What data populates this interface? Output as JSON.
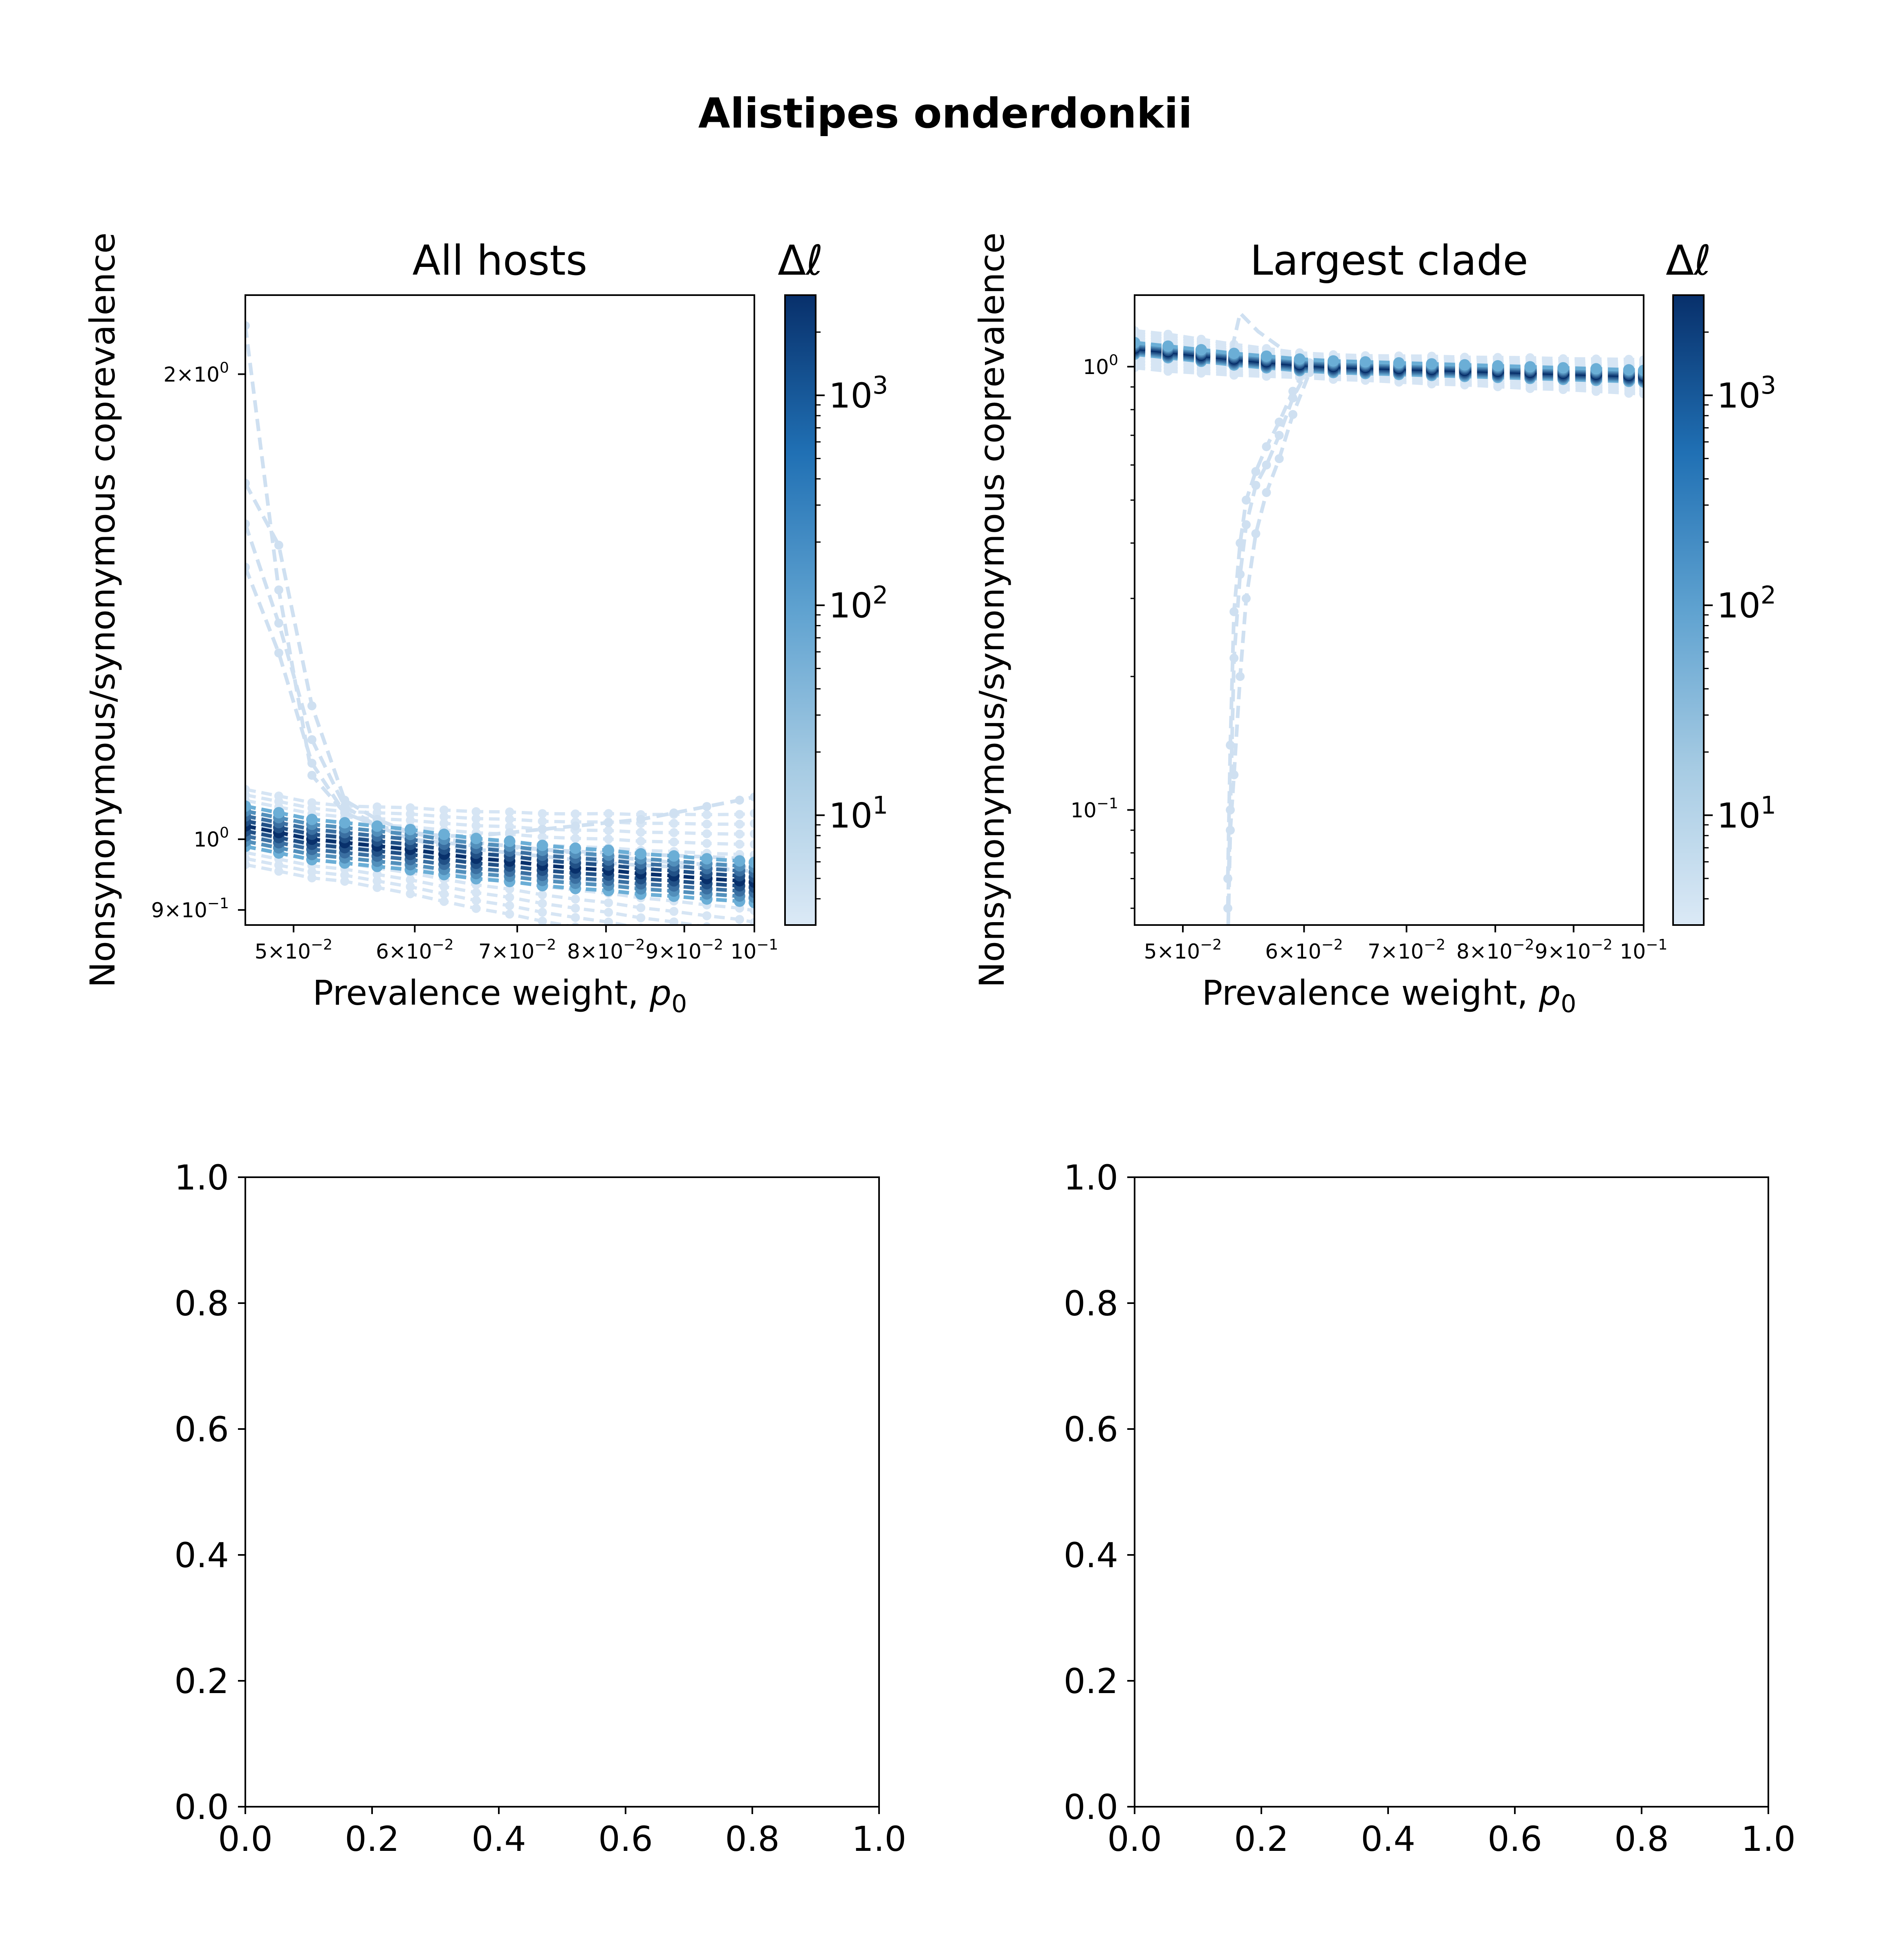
{
  "figure": {
    "suptitle": "Alistipes onderdonkii"
  },
  "chart_data": [
    {
      "panel": "top-left",
      "type": "line",
      "title": "All hosts",
      "xlabel_text": "Prevalence weight, ",
      "xlabel_var": "p",
      "xlabel_sub": "0",
      "ylabel": "Nonsynonymous/synonymous coprevalence",
      "xscale": "log",
      "yscale": "log",
      "xlim": [
        0.0465,
        0.1
      ],
      "ylim": [
        0.88,
        2.25
      ],
      "x_ticks": [
        {
          "value": 0.05,
          "mant": "5",
          "exp": "−2"
        },
        {
          "value": 0.06,
          "mant": "6",
          "exp": "−2"
        },
        {
          "value": 0.07,
          "mant": "7",
          "exp": "−2"
        },
        {
          "value": 0.08,
          "mant": "8",
          "exp": "−2"
        },
        {
          "value": 0.09,
          "mant": "9",
          "exp": "−2"
        },
        {
          "value": 0.1,
          "mant": "",
          "exp": "−1"
        }
      ],
      "y_ticks": [
        {
          "value": 2.0,
          "mant": "2",
          "exp": "0"
        },
        {
          "value": 1.0,
          "mant": "",
          "exp": "0"
        },
        {
          "value": 0.9,
          "mant": "9",
          "exp": "−1"
        }
      ],
      "x": [
        0.0465,
        0.0489,
        0.0514,
        0.054,
        0.0567,
        0.0596,
        0.0627,
        0.0658,
        0.0692,
        0.0727,
        0.0764,
        0.0803,
        0.0843,
        0.0886,
        0.0931,
        0.0978,
        0.1
      ],
      "colorbar": {
        "label": "Δℓ",
        "scale": "log",
        "range": [
          3,
          3000
        ],
        "ticks": [
          10,
          100,
          1000
        ],
        "colormap": "Blues"
      },
      "series_low_likelihood_color": "#d6e5f4",
      "series_high_likelihood_color": "#08306b",
      "bundle_center_dark": [
        1.02,
        1.01,
        1.0,
        0.995,
        0.99,
        0.985,
        0.978,
        0.972,
        0.968,
        0.962,
        0.958,
        0.955,
        0.95,
        0.947,
        0.943,
        0.94,
        0.938
      ],
      "bundle_spread_light": [
        0.07,
        0.07,
        0.07,
        0.07,
        0.075,
        0.08,
        0.085,
        0.09,
        0.095,
        0.1,
        0.105,
        0.11,
        0.115,
        0.12,
        0.125,
        0.13,
        0.135
      ],
      "outlier_series": [
        [
          2.15,
          1.45,
          1.1,
          1.04,
          1.02,
          1.0,
          0.99,
          0.985,
          0.98,
          0.975,
          0.97,
          0.965,
          0.962,
          0.96,
          0.958,
          0.955,
          0.953
        ],
        [
          1.7,
          1.55,
          1.22,
          1.06,
          1.03,
          1.01,
          1.0,
          0.995,
          0.99,
          0.985,
          0.98,
          0.975,
          0.97,
          0.966,
          0.963,
          0.96,
          0.958
        ],
        [
          1.6,
          1.38,
          1.16,
          1.05,
          1.02,
          1.0,
          0.995,
          0.99,
          0.988,
          0.985,
          0.982,
          0.98,
          0.978,
          0.976,
          0.974,
          0.972,
          0.97
        ],
        [
          1.5,
          1.32,
          1.12,
          1.04,
          1.02,
          1.01,
          1.005,
          1.005,
          1.01,
          1.015,
          1.02,
          1.025,
          1.03,
          1.04,
          1.05,
          1.06,
          1.065
        ]
      ]
    },
    {
      "panel": "top-right",
      "type": "line",
      "title": "Largest clade",
      "xlabel_text": "Prevalence weight, ",
      "xlabel_var": "p",
      "xlabel_sub": "0",
      "ylabel": "Nonsynonymous/synonymous coprevalence",
      "xscale": "log",
      "yscale": "log",
      "xlim": [
        0.0465,
        0.1
      ],
      "ylim": [
        0.055,
        1.45
      ],
      "x_ticks": [
        {
          "value": 0.05,
          "mant": "5",
          "exp": "−2"
        },
        {
          "value": 0.06,
          "mant": "6",
          "exp": "−2"
        },
        {
          "value": 0.07,
          "mant": "7",
          "exp": "−2"
        },
        {
          "value": 0.08,
          "mant": "8",
          "exp": "−2"
        },
        {
          "value": 0.09,
          "mant": "9",
          "exp": "−2"
        },
        {
          "value": 0.1,
          "mant": "",
          "exp": "−1"
        }
      ],
      "y_ticks": [
        {
          "value": 1.0,
          "mant": "",
          "exp": "0"
        },
        {
          "value": 0.1,
          "mant": "",
          "exp": "−1"
        }
      ],
      "x": [
        0.0465,
        0.0489,
        0.0514,
        0.054,
        0.0567,
        0.0596,
        0.0627,
        0.0658,
        0.0692,
        0.0727,
        0.0764,
        0.0803,
        0.0843,
        0.0886,
        0.0931,
        0.0978,
        0.1
      ],
      "colorbar": {
        "label": "Δℓ",
        "scale": "log",
        "range": [
          3,
          3000
        ],
        "ticks": [
          10,
          100,
          1000
        ],
        "colormap": "Blues"
      },
      "series_low_likelihood_color": "#d6e5f4",
      "series_high_likelihood_color": "#08306b",
      "bundle_center_dark": [
        1.1,
        1.08,
        1.06,
        1.04,
        1.025,
        1.01,
        1.0,
        0.995,
        0.99,
        0.985,
        0.98,
        0.975,
        0.97,
        0.965,
        0.96,
        0.955,
        0.952
      ],
      "bundle_spread_light": [
        0.12,
        0.12,
        0.11,
        0.1,
        0.09,
        0.08,
        0.08,
        0.08,
        0.085,
        0.09,
        0.09,
        0.095,
        0.1,
        0.1,
        0.105,
        0.11,
        0.11
      ],
      "outlier_series_x": [
        0.0535,
        0.0537,
        0.054,
        0.0545,
        0.055,
        0.0558,
        0.0567,
        0.0578,
        0.059,
        0.0605
      ],
      "outlier_series": [
        [
          0.06,
          0.1,
          0.22,
          0.34,
          0.44,
          0.54,
          0.6,
          0.7,
          0.85,
          1.0
        ],
        [
          0.07,
          0.14,
          0.28,
          0.4,
          0.5,
          0.58,
          0.66,
          0.75,
          0.88,
          1.02
        ],
        [
          0.05,
          0.09,
          0.12,
          0.2,
          0.3,
          0.42,
          0.52,
          0.62,
          0.78,
          0.97
        ]
      ],
      "outlier_spike": {
        "x": [
          0.0535,
          0.0545,
          0.056,
          0.058
        ],
        "y": [
          1.0,
          1.32,
          1.2,
          1.1
        ]
      }
    },
    {
      "panel": "bottom-left",
      "type": "line",
      "title": "",
      "xlim": [
        0,
        1
      ],
      "ylim": [
        0,
        1
      ],
      "x_ticks": [
        "0.0",
        "0.2",
        "0.4",
        "0.6",
        "0.8",
        "1.0"
      ],
      "y_ticks": [
        "0.0",
        "0.2",
        "0.4",
        "0.6",
        "0.8",
        "1.0"
      ],
      "series": []
    },
    {
      "panel": "bottom-right",
      "type": "line",
      "title": "",
      "xlim": [
        0,
        1
      ],
      "ylim": [
        0,
        1
      ],
      "x_ticks": [
        "0.0",
        "0.2",
        "0.4",
        "0.6",
        "0.8",
        "1.0"
      ],
      "y_ticks": [
        "0.0",
        "0.2",
        "0.4",
        "0.6",
        "0.8",
        "1.0"
      ],
      "series": []
    }
  ]
}
